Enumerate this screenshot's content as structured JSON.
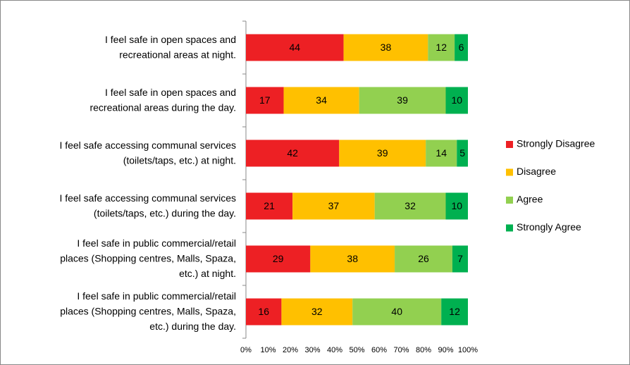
{
  "chart_data": {
    "type": "bar",
    "orientation": "horizontal",
    "stacked": true,
    "categories": [
      "I feel safe in open spaces and\nrecreational areas at night.",
      "I feel safe in open spaces and\nrecreational areas during the day.",
      "I feel safe accessing communal services\n(toilets/taps, etc.) at night.",
      "I feel safe accessing communal services\n(toilets/taps, etc.) during the day.",
      "I feel safe in public commercial/retail\nplaces (Shopping centres, Malls, Spaza,\netc.) at night.",
      "I feel safe in public commercial/retail\nplaces (Shopping centres, Malls, Spaza,\netc.) during the day."
    ],
    "series": [
      {
        "name": "Strongly Disagree",
        "color": "#ed2024",
        "values": [
          44,
          17,
          42,
          21,
          29,
          16
        ]
      },
      {
        "name": "Disagree",
        "color": "#ffc000",
        "values": [
          38,
          34,
          39,
          37,
          38,
          32
        ]
      },
      {
        "name": "Agree",
        "color": "#92d050",
        "values": [
          12,
          39,
          14,
          32,
          26,
          40
        ]
      },
      {
        "name": "Strongly Agree",
        "color": "#00b050",
        "values": [
          6,
          10,
          5,
          10,
          7,
          12
        ]
      }
    ],
    "xlim": [
      0,
      100
    ],
    "xticks": [
      {
        "value": 0,
        "label": "0%"
      },
      {
        "value": 10,
        "label": "10%"
      },
      {
        "value": 20,
        "label": "20%"
      },
      {
        "value": 30,
        "label": "30%"
      },
      {
        "value": 40,
        "label": "40%"
      },
      {
        "value": 50,
        "label": "50%"
      },
      {
        "value": 60,
        "label": "60%"
      },
      {
        "value": 70,
        "label": "70%"
      },
      {
        "value": 80,
        "label": "80%"
      },
      {
        "value": 90,
        "label": "90%"
      },
      {
        "value": 100,
        "label": "100%"
      }
    ],
    "legend": "right"
  }
}
